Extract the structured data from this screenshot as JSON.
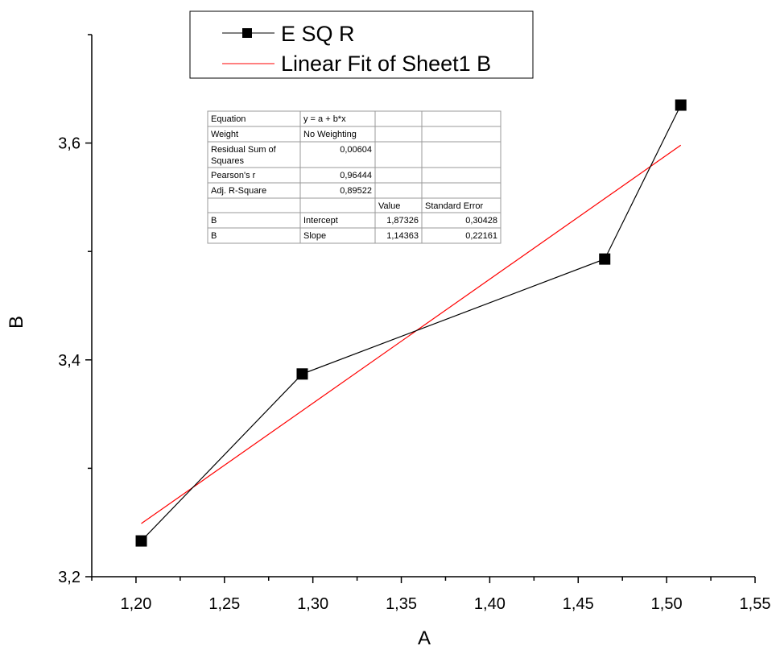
{
  "chart_data": {
    "type": "line",
    "xlabel": "A",
    "ylabel": "B",
    "xlim": [
      1.175,
      1.55
    ],
    "ylim": [
      3.2,
      3.7
    ],
    "x_ticks": [
      "1,20",
      "1,25",
      "1,30",
      "1,35",
      "1,40",
      "1,45",
      "1,50",
      "1,55"
    ],
    "x_tick_values": [
      1.2,
      1.25,
      1.3,
      1.35,
      1.4,
      1.45,
      1.5,
      1.55
    ],
    "y_ticks": [
      "3,2",
      "3,4",
      "3,6"
    ],
    "y_tick_values": [
      3.2,
      3.4,
      3.6
    ],
    "legend_position": "top",
    "series": [
      {
        "name": "E SQ R",
        "color": "#000000",
        "marker": "square",
        "x": [
          1.203,
          1.294,
          1.465,
          1.508
        ],
        "y": [
          3.233,
          3.387,
          3.493,
          3.635
        ]
      },
      {
        "name": "Linear Fit of Sheet1 B",
        "color": "#ff0000",
        "marker": "none",
        "fit": {
          "intercept": 1.87326,
          "slope": 1.14363
        },
        "x": [
          1.203,
          1.508
        ],
        "y": [
          3.249,
          3.598
        ]
      }
    ],
    "stats_table": {
      "rows": [
        [
          "Equation",
          "y = a + b*x",
          "",
          ""
        ],
        [
          "Weight",
          "No Weighting",
          "",
          ""
        ],
        [
          "Residual Sum of Squares",
          "0,00604",
          "",
          ""
        ],
        [
          "Pearson's r",
          "0,96444",
          "",
          ""
        ],
        [
          "Adj. R-Square",
          "0,89522",
          "",
          ""
        ],
        [
          "",
          "",
          "Value",
          "Standard Error"
        ],
        [
          "B",
          "Intercept",
          "1,87326",
          "0,30428"
        ],
        [
          "B",
          "Slope",
          "1,14363",
          "0,22161"
        ]
      ]
    }
  }
}
